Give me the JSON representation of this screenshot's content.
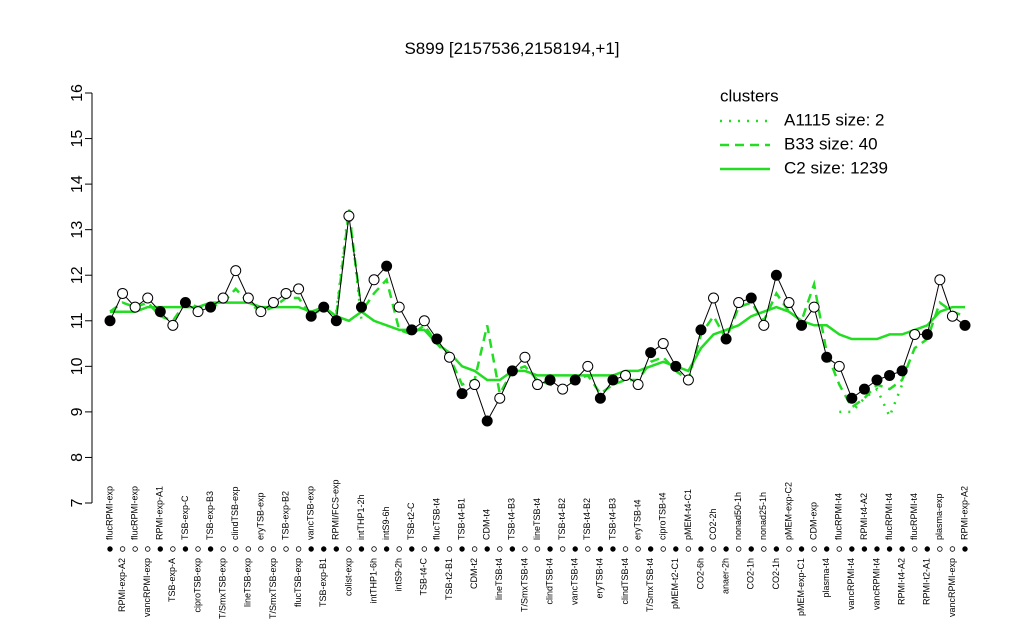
{
  "chart_data": {
    "type": "line",
    "title": "S899 [2157536,2158194,+1]",
    "ylim": [
      7,
      16
    ],
    "yticks": [
      7,
      8,
      9,
      10,
      11,
      12,
      13,
      14,
      15,
      16
    ],
    "grid": false,
    "color": "#000000",
    "legend_title": "clusters",
    "legend_position": "top-right",
    "categories": [
      "flucRPMI-exp",
      "RPMI-exp-A2",
      "flucRPMI-exp",
      "vancRPMI-exp",
      "RPMI-exp-A1",
      "TSB-exp-A",
      "TSB-exp-C",
      "ciproTSB-exp",
      "TSB-exp-B3",
      "T/SmxTSB-exp",
      "clindTSB-exp",
      "lineTSB-exp",
      "eryTSB-exp",
      "T/SmxTSB-exp",
      "TSB-exp-B2",
      "flucTSB-exp",
      "vancTSB-exp",
      "TSB-exp-B1",
      "RPMI/FCS-exp",
      "colist-exp",
      "intTHP1-2h",
      "intTHP1-6h",
      "intS9-6h",
      "intS9-2h",
      "TSB-t2-C",
      "TSB-t4-C",
      "flucTSB-t4",
      "TSB-t2-B1",
      "TSB-t4-B1",
      "CDM-t2",
      "CDM-t4",
      "lineTSB-t4",
      "TSB-t4-B3",
      "T/SmxTSB-t4",
      "lineTSB-t4",
      "clindTSB-t4",
      "TSB-t4-B2",
      "vancTSB-t4",
      "TSB-t4-B2",
      "eryTSB-t4",
      "TSB-t4-B3",
      "clindTSB-t4",
      "eryTSB-t4",
      "T/SmxTSB-t4",
      "ciproTSB-t4",
      "pMEM-t2-C1",
      "pMEM-t4-C1",
      "CO2-6h",
      "CO2-2h",
      "anaer-2h",
      "nonad50-1h",
      "CO2-1h",
      "nonad25-1h",
      "CO2-1h",
      "pMEM-exp-C2",
      "pMEM-exp-C1",
      "CDM-exp",
      "plasma-t4",
      "flucRPMI-t4",
      "vancRPMI-t4",
      "RPMI-t4-A2",
      "vancRPMI-t4",
      "flucRPMI-t4",
      "RPMI-t4-A2",
      "flucRPMI-t4",
      "RPMI-t2-A1",
      "plasma-exp",
      "vancRPMI-exp",
      "RPMI-exp-A2"
    ],
    "values": [
      11.0,
      11.6,
      11.3,
      11.5,
      11.2,
      10.9,
      11.4,
      11.2,
      11.3,
      11.5,
      12.1,
      11.5,
      11.2,
      11.4,
      11.6,
      11.7,
      11.1,
      11.3,
      11.0,
      13.3,
      11.3,
      11.9,
      12.2,
      11.3,
      10.8,
      11.0,
      10.6,
      10.2,
      9.4,
      9.6,
      8.8,
      9.3,
      9.9,
      10.2,
      9.6,
      9.7,
      9.5,
      9.7,
      10.0,
      9.3,
      9.7,
      9.8,
      9.6,
      10.3,
      10.5,
      10.0,
      9.7,
      10.8,
      11.5,
      10.6,
      11.4,
      11.5,
      10.9,
      12.0,
      11.4,
      10.9,
      11.3,
      10.2,
      10.0,
      9.3,
      9.5,
      9.7,
      9.8,
      9.9,
      10.7,
      10.7,
      11.9,
      11.1,
      10.9
    ],
    "marker_filled": [
      true,
      false,
      false,
      false,
      true,
      false,
      true,
      false,
      true,
      false,
      false,
      false,
      false,
      false,
      false,
      false,
      true,
      true,
      true,
      false,
      true,
      false,
      true,
      false,
      true,
      false,
      true,
      false,
      true,
      false,
      true,
      false,
      true,
      false,
      false,
      true,
      false,
      true,
      false,
      true,
      true,
      false,
      false,
      true,
      false,
      true,
      false,
      true,
      false,
      true,
      false,
      true,
      false,
      true,
      false,
      true,
      false,
      true,
      false,
      true,
      true,
      true,
      true,
      true,
      false,
      true,
      false,
      false,
      true
    ],
    "series": [
      {
        "name": "A1115 size: 2",
        "color": "#22dd22",
        "style": "dotted",
        "values": [
          null,
          null,
          null,
          null,
          null,
          null,
          null,
          null,
          null,
          null,
          null,
          null,
          null,
          null,
          null,
          null,
          null,
          null,
          11.2,
          13.5,
          11.0,
          null,
          null,
          null,
          null,
          null,
          null,
          null,
          null,
          null,
          null,
          null,
          null,
          null,
          null,
          null,
          null,
          null,
          null,
          null,
          null,
          null,
          null,
          null,
          null,
          null,
          null,
          null,
          null,
          null,
          null,
          null,
          null,
          null,
          null,
          null,
          null,
          null,
          9.0,
          9.0,
          9.3,
          9.5,
          8.9,
          9.6,
          null,
          null,
          null,
          null,
          null
        ]
      },
      {
        "name": "B33 size: 40",
        "color": "#22dd22",
        "style": "dashed",
        "values": [
          11.2,
          11.4,
          11.3,
          11.4,
          11.1,
          11.0,
          11.4,
          11.3,
          11.3,
          11.4,
          11.7,
          11.4,
          11.2,
          11.3,
          11.5,
          11.5,
          11.1,
          11.3,
          11.1,
          13.4,
          11.2,
          11.6,
          11.9,
          10.8,
          10.7,
          10.9,
          10.5,
          10.2,
          9.6,
          9.7,
          10.9,
          9.4,
          9.9,
          10.0,
          9.7,
          9.6,
          9.5,
          9.7,
          9.8,
          9.4,
          9.6,
          9.7,
          9.7,
          10.1,
          10.2,
          9.9,
          9.7,
          10.7,
          11.1,
          10.6,
          11.3,
          11.4,
          11.0,
          11.6,
          11.2,
          11.0,
          11.8,
          10.3,
          9.6,
          9.1,
          9.3,
          9.6,
          9.5,
          9.7,
          10.4,
          10.6,
          11.4,
          11.2,
          11.1
        ]
      },
      {
        "name": "C2 size: 1239",
        "color": "#22dd22",
        "style": "solid",
        "values": [
          11.2,
          11.2,
          11.2,
          11.3,
          11.3,
          11.3,
          11.3,
          11.3,
          11.4,
          11.4,
          11.4,
          11.4,
          11.3,
          11.3,
          11.3,
          11.3,
          11.2,
          11.3,
          11.1,
          11.0,
          11.2,
          11.0,
          10.9,
          10.8,
          10.8,
          10.8,
          10.5,
          10.3,
          10.0,
          9.9,
          9.7,
          9.7,
          9.9,
          9.9,
          9.8,
          9.8,
          9.8,
          9.8,
          9.8,
          9.8,
          9.8,
          9.9,
          9.9,
          10.0,
          10.1,
          10.0,
          9.9,
          10.4,
          10.7,
          10.8,
          10.9,
          11.1,
          11.2,
          11.3,
          11.2,
          11.0,
          10.9,
          10.9,
          10.7,
          10.6,
          10.6,
          10.6,
          10.7,
          10.7,
          10.8,
          10.9,
          11.2,
          11.3,
          11.3
        ]
      }
    ]
  }
}
